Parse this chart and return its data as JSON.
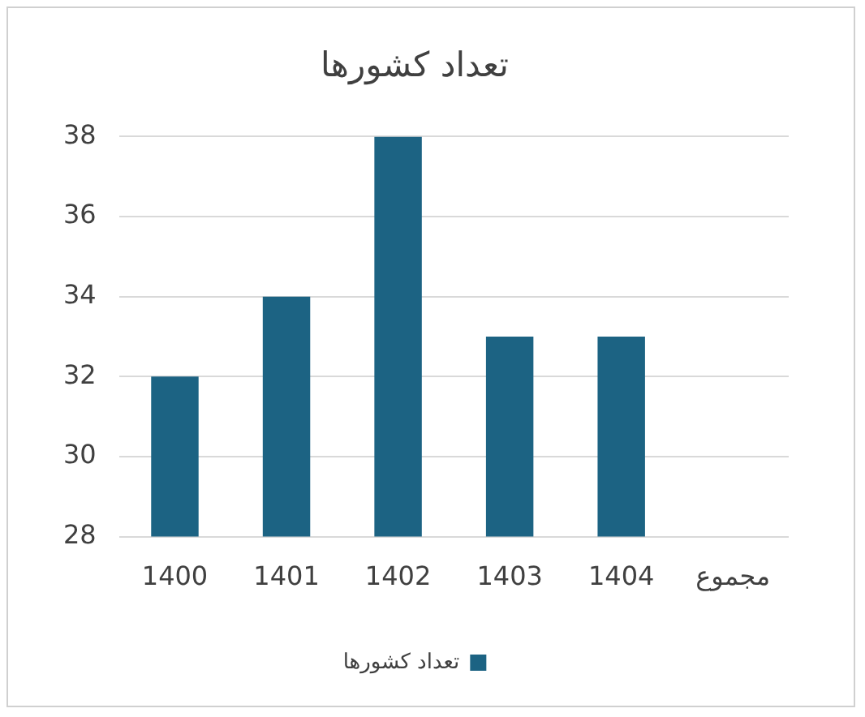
{
  "chart_data": {
    "type": "bar",
    "title": "تعداد کشورها",
    "categories": [
      "1400",
      "1401",
      "1402",
      "1403",
      "1404",
      "مجموع"
    ],
    "series": [
      {
        "name": "تعداد کشورها",
        "color": "#1c6383",
        "values": [
          32,
          34,
          38,
          33,
          33,
          null
        ]
      }
    ],
    "ylim": [
      28,
      38
    ],
    "yticks": [
      28,
      30,
      32,
      34,
      36,
      38
    ],
    "grid": "y",
    "legend": "bottom"
  }
}
